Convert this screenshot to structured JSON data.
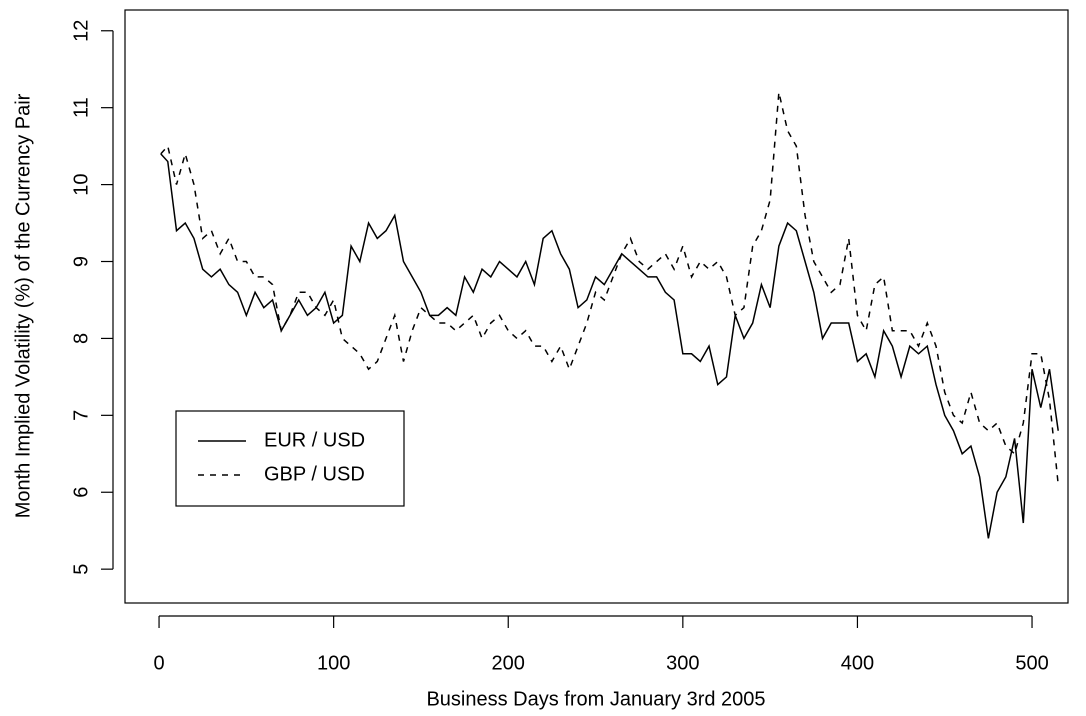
{
  "chart_data": {
    "type": "line",
    "xlabel": "Business Days from January 3rd 2005",
    "ylabel": "Month Implied Volatility (%) of the Currency Pair",
    "x": [
      1,
      5,
      10,
      15,
      20,
      25,
      30,
      35,
      40,
      45,
      50,
      55,
      60,
      65,
      70,
      75,
      80,
      85,
      90,
      95,
      100,
      105,
      110,
      115,
      120,
      125,
      130,
      135,
      140,
      145,
      150,
      155,
      160,
      165,
      170,
      175,
      180,
      185,
      190,
      195,
      200,
      205,
      210,
      215,
      220,
      225,
      230,
      235,
      240,
      245,
      250,
      255,
      260,
      265,
      270,
      275,
      280,
      285,
      290,
      295,
      300,
      305,
      310,
      315,
      320,
      325,
      330,
      335,
      340,
      345,
      350,
      355,
      360,
      365,
      370,
      375,
      380,
      385,
      390,
      395,
      400,
      405,
      410,
      415,
      420,
      425,
      430,
      435,
      440,
      445,
      450,
      455,
      460,
      465,
      470,
      475,
      480,
      485,
      490,
      495,
      500,
      505,
      510,
      515
    ],
    "series": [
      {
        "name": "EUR / USD",
        "color": "#000000",
        "linestyle": "solid",
        "values": [
          10.4,
          10.3,
          9.4,
          9.5,
          9.3,
          8.9,
          8.8,
          8.9,
          8.7,
          8.6,
          8.3,
          8.6,
          8.4,
          8.5,
          8.1,
          8.3,
          8.5,
          8.3,
          8.4,
          8.6,
          8.2,
          8.3,
          9.2,
          9.0,
          9.5,
          9.3,
          9.4,
          9.6,
          9.0,
          8.8,
          8.6,
          8.3,
          8.3,
          8.4,
          8.3,
          8.8,
          8.6,
          8.9,
          8.8,
          9.0,
          8.9,
          8.8,
          9.0,
          8.7,
          9.3,
          9.4,
          9.1,
          8.9,
          8.4,
          8.5,
          8.8,
          8.7,
          8.9,
          9.1,
          9.0,
          8.9,
          8.8,
          8.8,
          8.6,
          8.5,
          7.8,
          7.8,
          7.7,
          7.9,
          7.4,
          7.5,
          8.3,
          8.0,
          8.2,
          8.7,
          8.4,
          9.2,
          9.5,
          9.4,
          9.0,
          8.6,
          8.0,
          8.2,
          8.2,
          8.2,
          7.7,
          7.8,
          7.5,
          8.1,
          7.9,
          7.5,
          7.9,
          7.8,
          7.9,
          7.4,
          7.0,
          6.8,
          6.5,
          6.6,
          6.2,
          5.4,
          6.0,
          6.2,
          6.7,
          5.6,
          7.6,
          7.1,
          7.6,
          6.8
        ]
      },
      {
        "name": "GBP / USD",
        "color": "#000000",
        "linestyle": "dashed",
        "values": [
          10.4,
          10.5,
          10.0,
          10.4,
          10.0,
          9.3,
          9.4,
          9.1,
          9.3,
          9.0,
          9.0,
          8.8,
          8.8,
          8.7,
          8.1,
          8.3,
          8.6,
          8.6,
          8.4,
          8.3,
          8.5,
          8.0,
          7.9,
          7.8,
          7.6,
          7.7,
          8.0,
          8.3,
          7.7,
          8.1,
          8.4,
          8.3,
          8.2,
          8.2,
          8.1,
          8.2,
          8.3,
          8.0,
          8.2,
          8.3,
          8.1,
          8.0,
          8.1,
          7.9,
          7.9,
          7.7,
          7.9,
          7.6,
          7.9,
          8.2,
          8.6,
          8.5,
          8.8,
          9.1,
          9.3,
          9.0,
          8.9,
          9.0,
          9.1,
          8.9,
          9.2,
          8.8,
          9.0,
          8.9,
          9.0,
          8.8,
          8.3,
          8.4,
          9.2,
          9.4,
          9.8,
          11.2,
          10.7,
          10.5,
          9.6,
          9.0,
          8.8,
          8.6,
          8.7,
          9.3,
          8.3,
          8.1,
          8.7,
          8.8,
          8.1,
          8.1,
          8.1,
          7.9,
          8.2,
          7.9,
          7.3,
          7.0,
          6.9,
          7.3,
          6.9,
          6.8,
          6.9,
          6.6,
          6.5,
          6.9,
          7.8,
          7.8,
          7.2,
          6.1
        ]
      }
    ],
    "xlim": [
      -19.5,
      520.6
    ],
    "ylim": [
      4.56,
      12.27
    ],
    "xticks": [
      0,
      100,
      200,
      300,
      400,
      500
    ],
    "yticks": [
      5,
      6,
      7,
      8,
      9,
      10,
      11,
      12
    ],
    "legend": "left",
    "grid": false
  }
}
